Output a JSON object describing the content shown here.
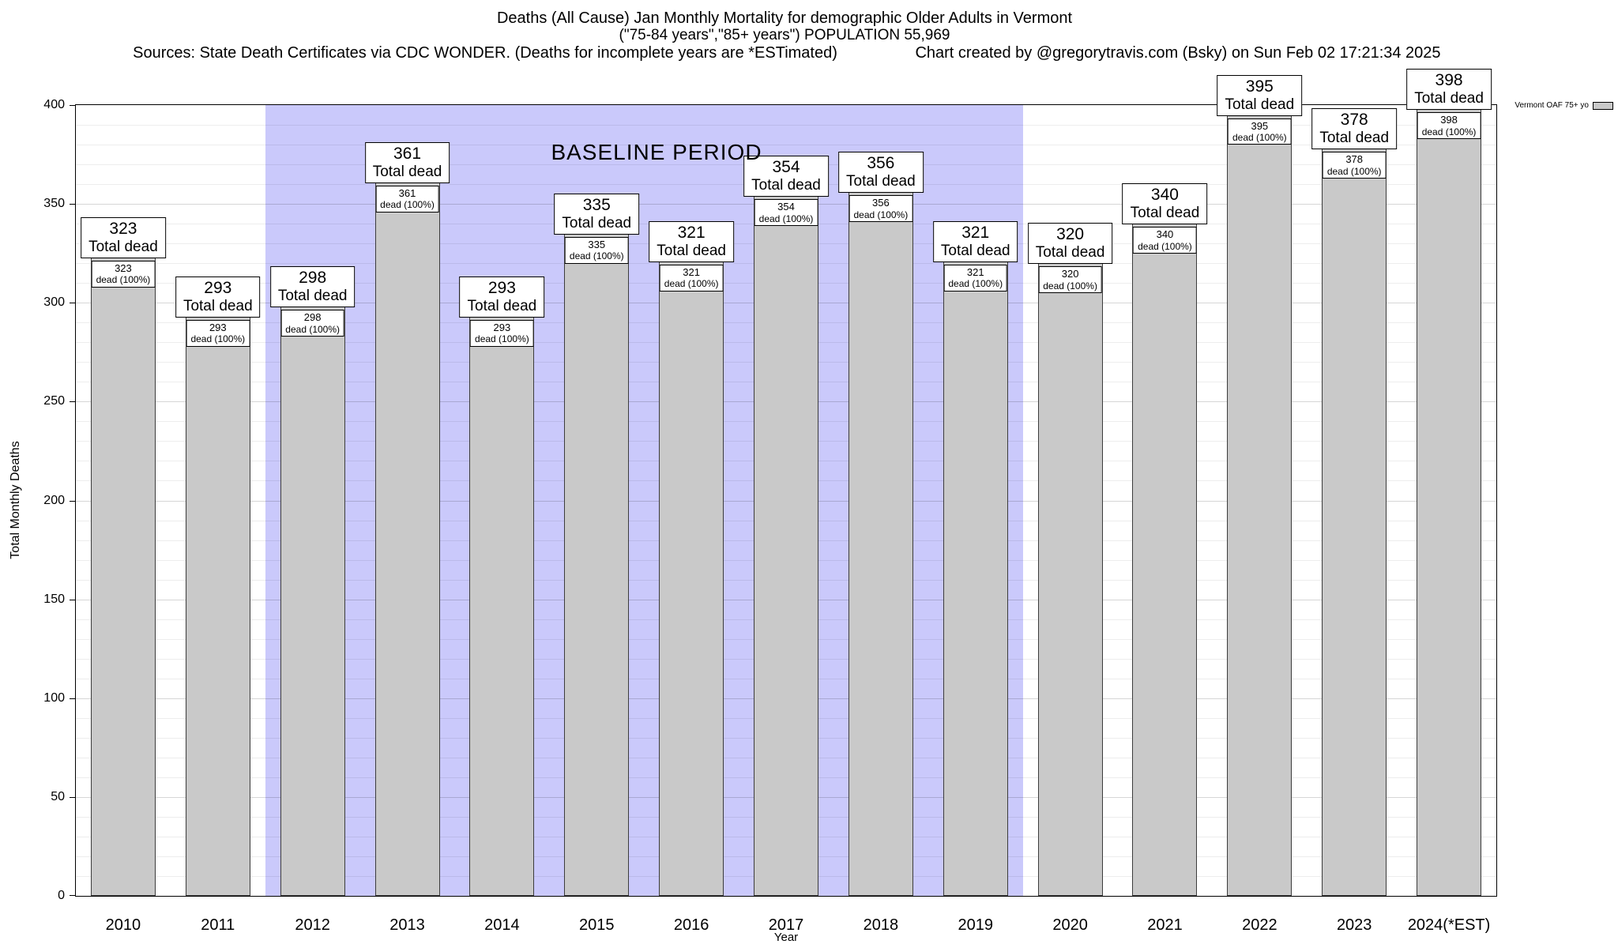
{
  "header": {
    "sources": "Sources: State Death Certificates via CDC WONDER. (Deaths for incomplete years are *ESTimated)",
    "credit": "Chart created by @gregorytravis.com (Bsky) on Sun Feb 02 17:21:34 2025"
  },
  "chart_data": {
    "type": "bar",
    "title": "Deaths (All Cause) Jan Monthly Mortality for demographic Older Adults in Vermont",
    "subtitle": "(\"75-84 years\",\"85+ years\") POPULATION 55,969",
    "xlabel": "Year",
    "ylabel": "Total Monthly Deaths",
    "categories": [
      "2010",
      "2011",
      "2012",
      "2013",
      "2014",
      "2015",
      "2016",
      "2017",
      "2018",
      "2019",
      "2020",
      "2021",
      "2022",
      "2023",
      "2024(*EST)"
    ],
    "values": [
      323,
      293,
      298,
      361,
      293,
      335,
      321,
      354,
      356,
      321,
      320,
      340,
      395,
      378,
      398
    ],
    "bar_top_label_suffix": "Total dead",
    "bar_inner_label_suffix": "dead (100%)",
    "ylim": [
      0,
      400
    ],
    "ytick": 50,
    "grid_minor": 10,
    "grid": true,
    "bar_color": "#c9c9c9",
    "baseline": {
      "label": "BASELINE PERIOD",
      "start_category": "2012",
      "end_category": "2019",
      "color": "#cac9fb"
    },
    "legend": {
      "label": "Vermont OAF 75+ yo",
      "swatch_color": "#c9c9c9",
      "position": "top-right"
    }
  }
}
